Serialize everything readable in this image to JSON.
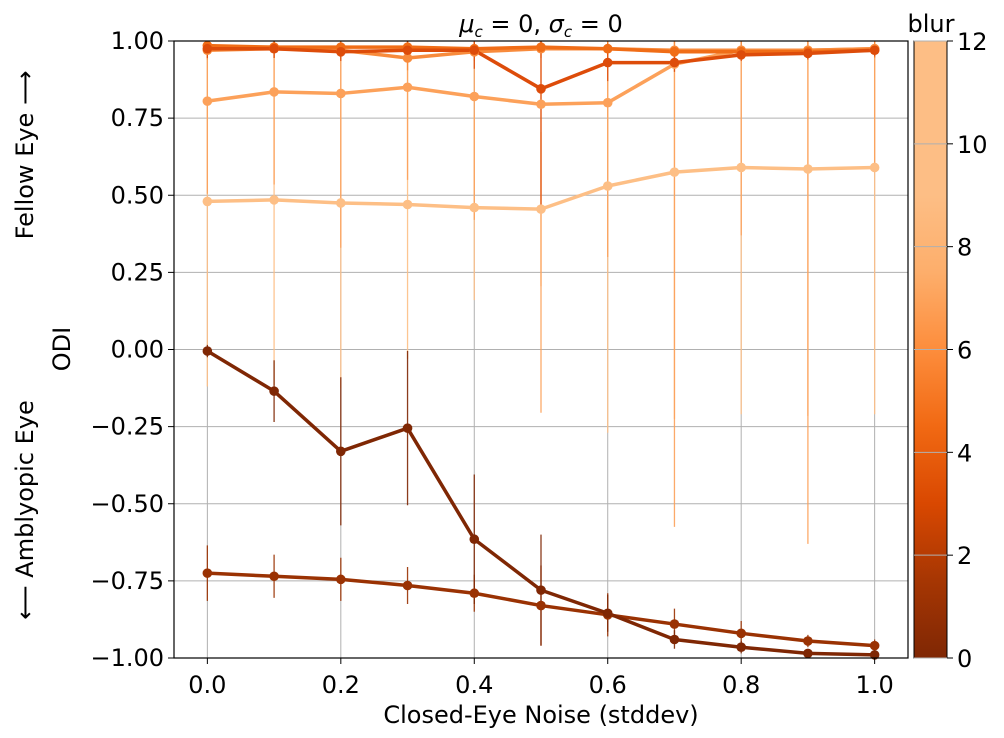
{
  "chart_data": {
    "type": "line",
    "title": "μc = 0, σc = 0",
    "xlabel": "Closed-Eye Noise (stddev)",
    "ylabel": "ODI",
    "side_label_top": "Fellow Eye ⟶",
    "side_label_bottom": "⟵ Amblyopic Eye",
    "xlim": [
      -0.05,
      1.05
    ],
    "ylim": [
      -1.0,
      1.0
    ],
    "xticks": [
      0.0,
      0.2,
      0.4,
      0.6,
      0.8,
      1.0
    ],
    "yticks": [
      -1.0,
      -0.75,
      -0.5,
      -0.25,
      0.0,
      0.25,
      0.5,
      0.75,
      1.0
    ],
    "xtick_labels": [
      "0.0",
      "0.2",
      "0.4",
      "0.6",
      "0.8",
      "1.0"
    ],
    "ytick_labels": [
      "−1.00",
      "−0.75",
      "−0.50",
      "−0.25",
      "0.00",
      "0.25",
      "0.50",
      "0.75",
      "1.00"
    ],
    "grid": true,
    "x": [
      0.0,
      0.1,
      0.2,
      0.3,
      0.4,
      0.5,
      0.6,
      0.7,
      0.8,
      0.9,
      1.0
    ],
    "colorbar": {
      "label": "blur",
      "range": [
        0,
        12
      ],
      "ticks": [
        0,
        2,
        4,
        6,
        8,
        10,
        12
      ],
      "tick_labels": [
        "0",
        "2",
        "4",
        "6",
        "8",
        "10",
        "12"
      ],
      "colormap": "Oranges",
      "color_low": "#7f2704",
      "color_high": "#fdbe85"
    },
    "series": [
      {
        "blur": 0,
        "color": "#7f2704",
        "values": [
          -0.005,
          -0.135,
          -0.33,
          -0.255,
          -0.615,
          -0.78,
          -0.855,
          -0.94,
          -0.965,
          -0.985,
          -0.99
        ],
        "err": [
          0.02,
          0.1,
          0.24,
          0.25,
          0.21,
          0.18,
          0.06,
          0.03,
          0.02,
          0.01,
          0.01
        ]
      },
      {
        "blur": 1.5,
        "color": "#9a3203",
        "values": [
          -0.725,
          -0.735,
          -0.745,
          -0.765,
          -0.79,
          -0.83,
          -0.86,
          -0.89,
          -0.92,
          -0.945,
          -0.96
        ],
        "err": [
          0.09,
          0.07,
          0.07,
          0.06,
          0.06,
          0.13,
          0.07,
          0.05,
          0.04,
          0.02,
          0.02
        ]
      },
      {
        "blur": 4.5,
        "color": "#dd4c0a",
        "values": [
          0.975,
          0.975,
          0.965,
          0.97,
          0.97,
          0.845,
          0.93,
          0.93,
          0.955,
          0.96,
          0.97
        ],
        "err": [
          0.03,
          0.03,
          0.03,
          0.04,
          0.06,
          0.4,
          0.06,
          0.03,
          0.02,
          0.02,
          0.02
        ]
      },
      {
        "blur": 6,
        "color": "#f06d17",
        "values": [
          0.985,
          0.98,
          0.98,
          0.98,
          0.975,
          0.98,
          0.975,
          0.965,
          0.965,
          0.965,
          0.97
        ],
        "err": [
          0.02,
          0.02,
          0.02,
          0.02,
          0.02,
          0.02,
          0.02,
          0.02,
          0.02,
          0.02,
          0.02
        ]
      },
      {
        "blur": 7.5,
        "color": "#f88b3c",
        "values": [
          0.97,
          0.975,
          0.97,
          0.945,
          0.965,
          0.975,
          0.975,
          0.97,
          0.97,
          0.97,
          0.975
        ],
        "err": [
          0.03,
          0.03,
          0.03,
          0.04,
          0.03,
          0.03,
          0.03,
          0.03,
          0.03,
          0.03,
          0.03
        ]
      },
      {
        "blur": 9.5,
        "color": "#fca15a",
        "values": [
          0.805,
          0.835,
          0.83,
          0.85,
          0.82,
          0.795,
          0.8,
          0.925,
          0.97,
          0.97,
          0.975
        ],
        "err": [
          0.3,
          0.3,
          0.5,
          0.3,
          0.4,
          1.0,
          0.5,
          1.5,
          0.6,
          1.6,
          0.4
        ]
      },
      {
        "blur": 11.5,
        "color": "#fdbf86",
        "values": [
          0.48,
          0.485,
          0.475,
          0.47,
          0.46,
          0.455,
          0.53,
          0.575,
          0.59,
          0.585,
          0.59
        ],
        "err": [
          0.6,
          0.6,
          0.6,
          0.5,
          0.3,
          0.25,
          0.8,
          0.8,
          0.8,
          0.8,
          0.8
        ]
      }
    ]
  }
}
